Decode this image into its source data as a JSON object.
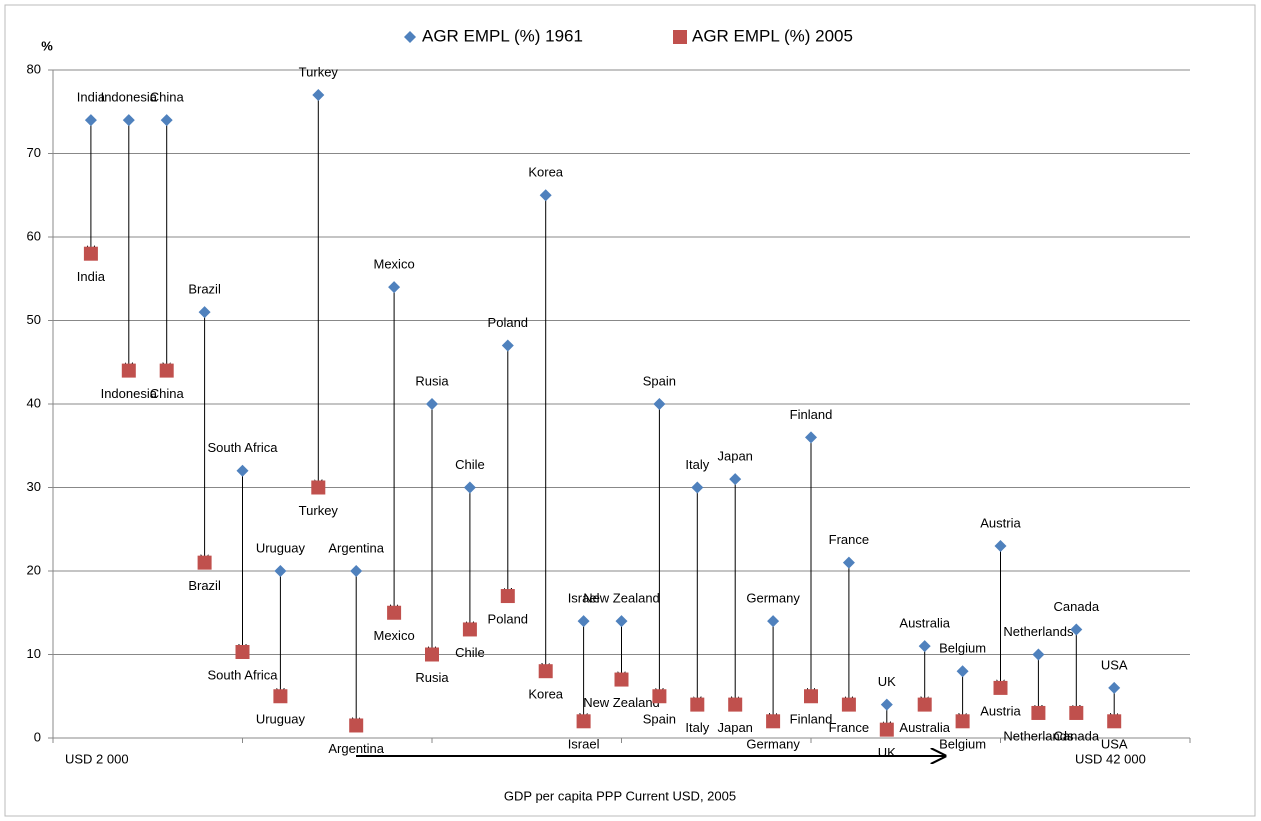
{
  "chart_data": {
    "type": "dumbbell-arrow",
    "y_label": "%",
    "x_label": "GDP per capita  PPP Current USD, 2005",
    "x_start_label": "USD   2 000",
    "x_end_label": "USD   42 000",
    "categories": [
      "India",
      "Indonesia",
      "China",
      "Brazil",
      "South Africa",
      "Uruguay",
      "Turkey",
      "Argentina",
      "Mexico",
      "Rusia",
      "Chile",
      "Poland",
      "Korea",
      "Israel",
      "New Zealand",
      "Spain",
      "Italy",
      "Japan",
      "Germany",
      "Finland",
      "France",
      "UK",
      "Australia",
      "Belgium",
      "Austria",
      "Netherlands",
      "Canada",
      "USA"
    ],
    "series": [
      {
        "name": "AGR EMPL (%) 1961",
        "color": "#4f81bd",
        "marker": "diamond",
        "values": [
          74,
          74,
          74,
          51,
          32,
          20,
          77,
          20,
          54,
          40,
          30,
          47,
          65,
          14,
          14,
          40,
          30,
          31,
          14,
          36,
          21,
          4,
          11,
          8,
          23,
          10,
          13,
          6
        ]
      },
      {
        "name": "AGR EMPL (%) 2005",
        "color": "#c0504d",
        "marker": "square",
        "values": [
          58,
          44,
          44,
          21,
          10.3,
          5,
          30,
          1.5,
          15,
          10,
          13,
          17,
          8,
          2,
          7,
          5,
          4,
          4,
          2,
          5,
          4,
          1,
          4,
          2,
          6,
          3,
          3,
          2
        ]
      }
    ],
    "ylim": [
      0,
      80
    ],
    "yticks": [
      0,
      10,
      20,
      30,
      40,
      50,
      60,
      70,
      80
    ],
    "grid": true
  }
}
